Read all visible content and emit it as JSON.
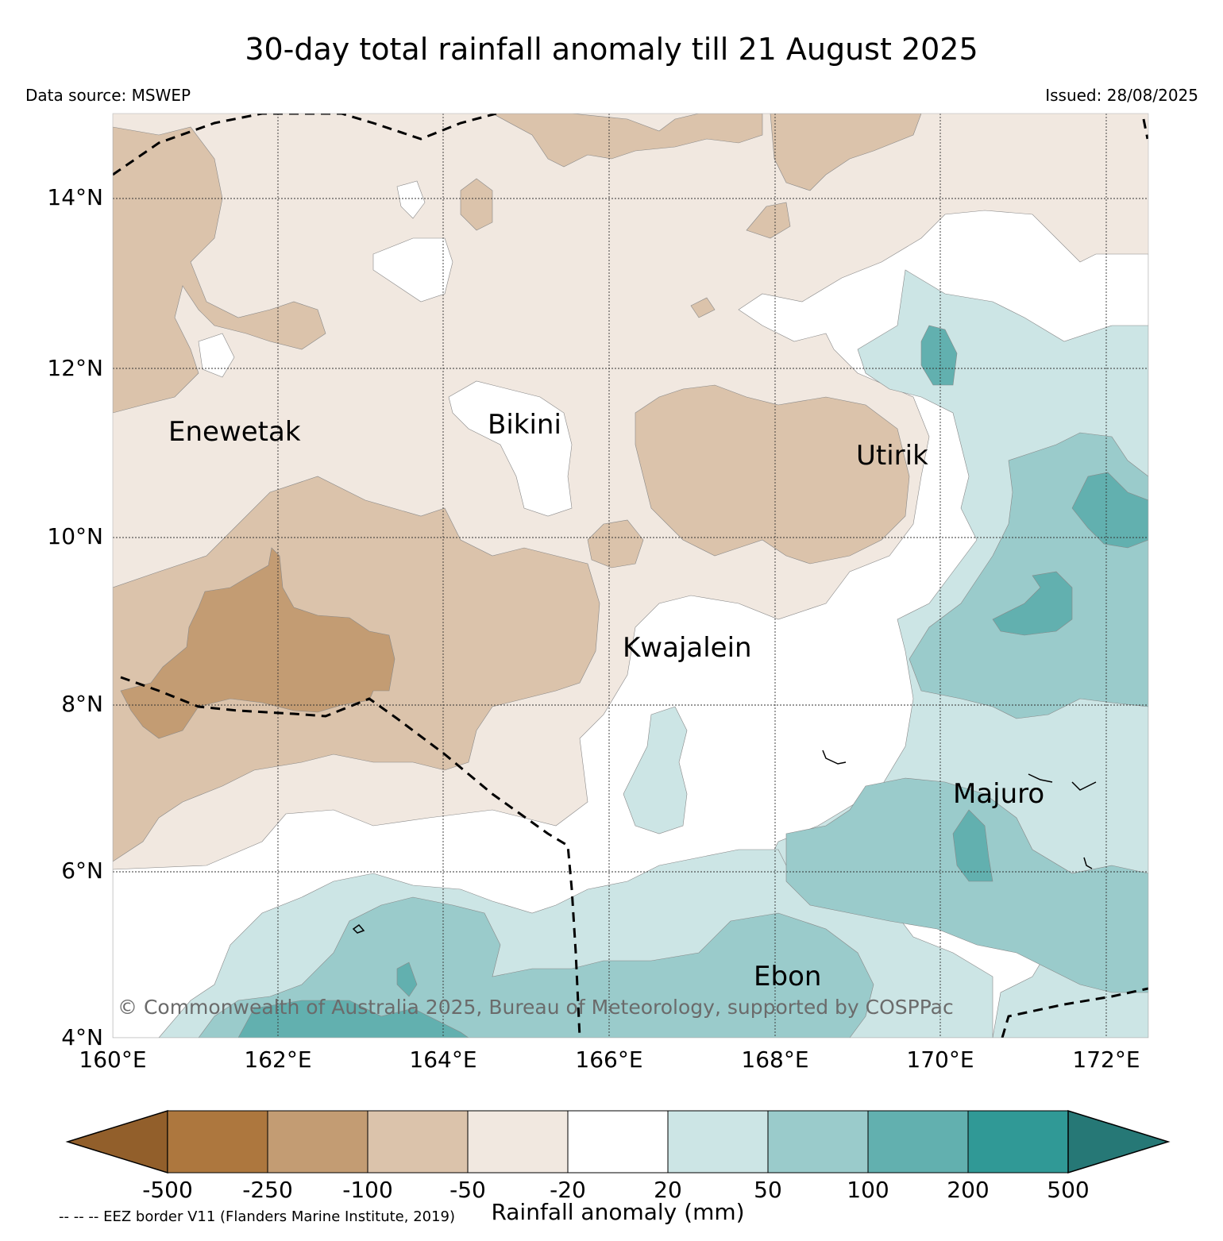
{
  "title": "30-day total rainfall anomaly till 21 August 2025",
  "data_source": "Data source: MSWEP",
  "issued": "Issued: 28/08/2025",
  "lat_ticks": [
    "4°N",
    "6°N",
    "8°N",
    "10°N",
    "12°N",
    "14°N"
  ],
  "lon_ticks": [
    "160°E",
    "162°E",
    "164°E",
    "166°E",
    "168°E",
    "170°E",
    "172°E"
  ],
  "places": {
    "enewetak": "Enewetak",
    "bikini": "Bikini",
    "utirik": "Utirik",
    "kwajalein": "Kwajalein",
    "majuro": "Majuro",
    "ebon": "Ebon"
  },
  "copyright": "© Commonwealth of Australia 2025, Bureau of Meteorology, supported by COSPPac",
  "colorbar": {
    "label": "Rainfall anomaly (mm)",
    "ticks": [
      "-500",
      "-250",
      "-100",
      "-50",
      "-20",
      "20",
      "50",
      "100",
      "200",
      "500"
    ],
    "colors": [
      "#925f2b",
      "#ad773e",
      "#c39c73",
      "#dbc3ab",
      "#f1e8e0",
      "#ffffff",
      "#cce5e5",
      "#9acbcb",
      "#62b0af",
      "#309996",
      "#267876"
    ]
  },
  "eez_note": "-- -- -- EEZ border V11 (Flanders Marine Institute, 2019)"
}
